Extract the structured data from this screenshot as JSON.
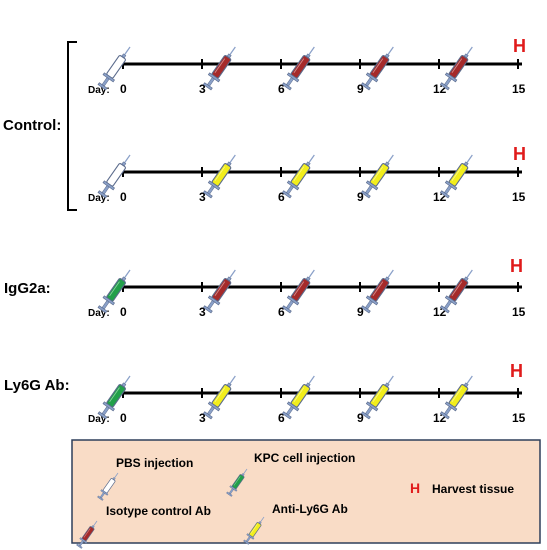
{
  "colors": {
    "pbs": "#ffffff",
    "kpc": "#22a04a",
    "isotype": "#a52a2a",
    "anti_ly6g": "#f2ee1c",
    "syringe_metal": "#8aa0c8",
    "harvest": "#e01b1b",
    "legend_bg": "#f9dcc6",
    "legend_border": "#2e3e5a"
  },
  "groups": {
    "control": {
      "label": "Control:"
    },
    "igg2a": {
      "label": "IgG2a:"
    },
    "ly6g": {
      "label": "Ly6G Ab:"
    }
  },
  "timeline": {
    "day_label": "Day:",
    "ticks": [
      "0",
      "3",
      "6",
      "9",
      "12",
      "15"
    ],
    "harvest_mark": "H"
  },
  "rows": [
    {
      "group": "control",
      "injections": [
        {
          "day": 0,
          "type": "pbs"
        },
        {
          "day": 4,
          "type": "isotype"
        },
        {
          "day": 7,
          "type": "isotype"
        },
        {
          "day": 10,
          "type": "isotype"
        },
        {
          "day": 13,
          "type": "isotype"
        }
      ]
    },
    {
      "group": "control",
      "injections": [
        {
          "day": 0,
          "type": "pbs"
        },
        {
          "day": 4,
          "type": "anti_ly6g"
        },
        {
          "day": 7,
          "type": "anti_ly6g"
        },
        {
          "day": 10,
          "type": "anti_ly6g"
        },
        {
          "day": 13,
          "type": "anti_ly6g"
        }
      ]
    },
    {
      "group": "igg2a",
      "injections": [
        {
          "day": 0,
          "type": "kpc"
        },
        {
          "day": 4,
          "type": "isotype"
        },
        {
          "day": 7,
          "type": "isotype"
        },
        {
          "day": 10,
          "type": "isotype"
        },
        {
          "day": 13,
          "type": "isotype"
        }
      ]
    },
    {
      "group": "ly6g",
      "injections": [
        {
          "day": 0,
          "type": "kpc"
        },
        {
          "day": 4,
          "type": "anti_ly6g"
        },
        {
          "day": 7,
          "type": "anti_ly6g"
        },
        {
          "day": 10,
          "type": "anti_ly6g"
        },
        {
          "day": 13,
          "type": "anti_ly6g"
        }
      ]
    }
  ],
  "legend": {
    "pbs": "PBS injection",
    "kpc": "KPC cell injection",
    "isotype": "Isotype control Ab",
    "anti_ly6g": "Anti-Ly6G Ab",
    "harvest_symbol": "H",
    "harvest": "Harvest tissue"
  }
}
